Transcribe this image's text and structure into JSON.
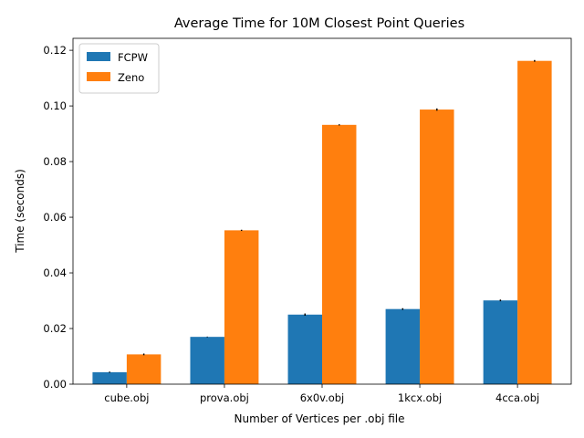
{
  "chart_data": {
    "type": "bar",
    "title": "Average Time for 10M Closest Point Queries",
    "xlabel": "Number of Vertices per .obj file",
    "ylabel": "Time (seconds)",
    "categories": [
      "cube.obj",
      "prova.obj",
      "6x0v.obj",
      "1kcx.obj",
      "4cca.obj"
    ],
    "series": [
      {
        "name": "FCPW",
        "color": "#1f77b4",
        "values": [
          0.0043,
          0.017,
          0.025,
          0.027,
          0.0301
        ],
        "errors": [
          0.0002,
          0.0001,
          0.0004,
          0.0003,
          0.0003
        ]
      },
      {
        "name": "Zeno",
        "color": "#ff7f0e",
        "values": [
          0.0107,
          0.0553,
          0.0932,
          0.0987,
          0.1162
        ],
        "errors": [
          0.0003,
          0.0002,
          0.0002,
          0.0004,
          0.0003
        ]
      }
    ],
    "ylim": [
      0,
      0.1243
    ],
    "yticks": [
      0.0,
      0.02,
      0.04,
      0.06,
      0.08,
      0.1,
      0.12
    ],
    "ytick_labels": [
      "0.00",
      "0.02",
      "0.04",
      "0.06",
      "0.08",
      "0.10",
      "0.12"
    ],
    "legend": "top-left",
    "grid": false
  }
}
